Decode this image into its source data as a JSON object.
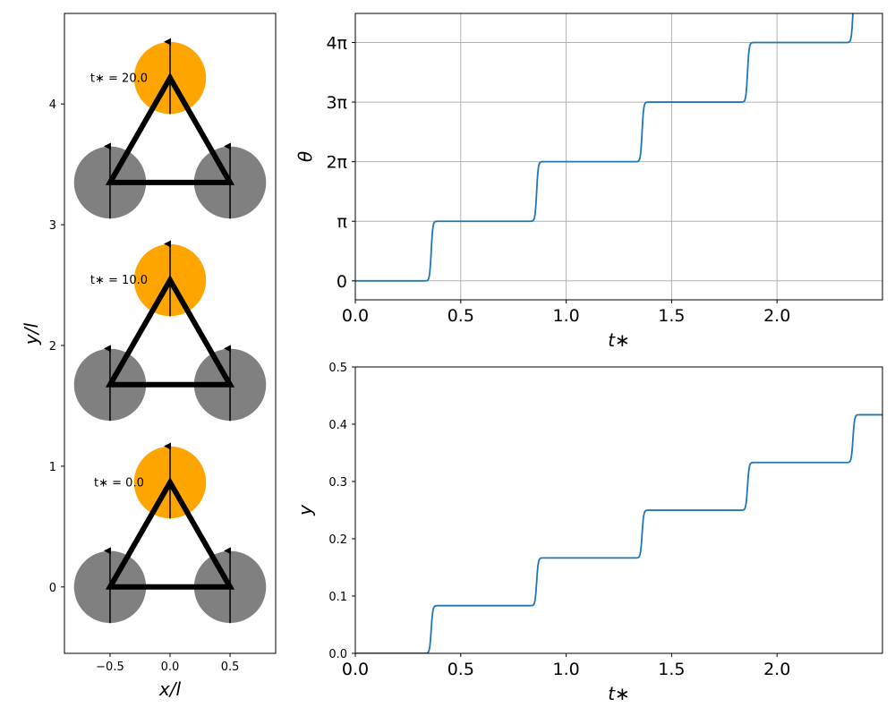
{
  "colors": {
    "line": "#1f77b4",
    "grid": "#b0b0b0",
    "gray_particle": "#808080",
    "orange_particle": "#ffa500",
    "frame": "#000000"
  },
  "chart_data": [
    {
      "type": "diagram",
      "xlabel": "$x/l$",
      "xlabel_text": "x/l",
      "ylabel_text": "y/l",
      "xlim": [
        -0.88,
        0.88
      ],
      "ylim": [
        -0.55,
        4.75
      ],
      "xticks": [
        -0.5,
        0.0,
        0.5
      ],
      "xtick_labels": [
        "−0.5",
        "0.0",
        "0.5"
      ],
      "yticks": [
        0,
        1,
        2,
        3,
        4
      ],
      "ytick_labels": [
        "0",
        "1",
        "2",
        "3",
        "4"
      ],
      "particle_radius": 0.3,
      "snapshots": [
        {
          "label": "t∗ = 0.0",
          "offset": 0.0,
          "label_y": 0.87
        },
        {
          "label": "t∗ = 10.0",
          "offset": 1.675,
          "label_y": 2.55
        },
        {
          "label": "t∗ = 20.0",
          "offset": 3.35,
          "label_y": 4.22
        }
      ],
      "triangle": {
        "bottom_left": [
          -0.5,
          0.0
        ],
        "bottom_right": [
          0.5,
          0.0
        ],
        "top": [
          0.0,
          0.866
        ]
      },
      "arrow": {
        "dy_down": -0.3,
        "dy_up": 0.3
      }
    },
    {
      "type": "line",
      "xlabel": "t∗",
      "ylabel": "θ",
      "xlim": [
        0.0,
        2.5
      ],
      "ylim": [
        -1.0,
        14.1
      ],
      "grid": true,
      "xticks": [
        0.0,
        0.5,
        1.0,
        1.5,
        2.0
      ],
      "xtick_labels": [
        "0.0",
        "0.5",
        "1.0",
        "1.5",
        "2.0"
      ],
      "yticks": [
        0,
        3.14159,
        6.28319,
        9.42478,
        12.56637
      ],
      "ytick_labels": [
        "0",
        "π",
        "2π",
        "3π",
        "4π"
      ],
      "steps_t": [
        0.36,
        0.86,
        1.36,
        1.86,
        2.36
      ],
      "step_height": 3.14159,
      "step_width": 0.015,
      "base": 0.0
    },
    {
      "type": "line",
      "xlabel": "t∗",
      "ylabel": "y",
      "xlim": [
        0.0,
        2.5
      ],
      "ylim": [
        0.0,
        0.5
      ],
      "grid": false,
      "xticks": [
        0.0,
        0.5,
        1.0,
        1.5,
        2.0
      ],
      "xtick_labels": [
        "0.0",
        "0.5",
        "1.0",
        "1.5",
        "2.0"
      ],
      "yticks": [
        0.0,
        0.1,
        0.2,
        0.3,
        0.4,
        0.5
      ],
      "ytick_labels": [
        "0.0",
        "0.1",
        "0.2",
        "0.3",
        "0.4",
        "0.5"
      ],
      "steps_t": [
        0.36,
        0.86,
        1.36,
        1.86,
        2.36
      ],
      "step_height": 0.0833,
      "step_width": 0.015,
      "base": 0.0
    }
  ]
}
